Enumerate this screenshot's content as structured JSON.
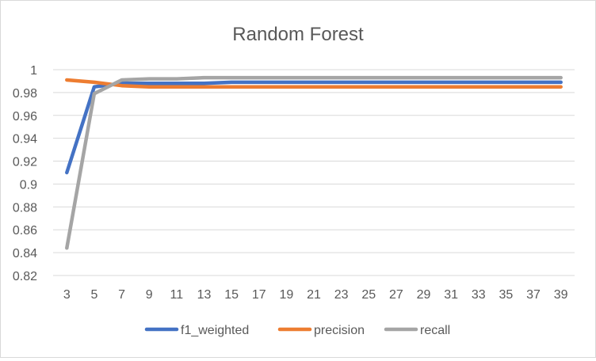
{
  "chart_data": {
    "type": "line",
    "title": "Random Forest",
    "xlabel": "",
    "ylabel": "",
    "x": [
      3,
      5,
      7,
      9,
      11,
      13,
      15,
      17,
      19,
      21,
      23,
      25,
      27,
      29,
      31,
      33,
      35,
      37,
      39
    ],
    "ylim": [
      0.82,
      1
    ],
    "yticks": [
      "0.82",
      "0.84",
      "0.86",
      "0.88",
      "0.9",
      "0.92",
      "0.94",
      "0.96",
      "0.98",
      "1"
    ],
    "grid": true,
    "legend": "bottom",
    "series": [
      {
        "name": "f1_weighted",
        "color": "#4472C4",
        "values": [
          0.91,
          0.985,
          0.988,
          0.988,
          0.988,
          0.988,
          0.989,
          0.989,
          0.989,
          0.989,
          0.989,
          0.989,
          0.989,
          0.989,
          0.989,
          0.989,
          0.989,
          0.989,
          0.989
        ]
      },
      {
        "name": "precision",
        "color": "#ED7D31",
        "values": [
          0.991,
          0.989,
          0.986,
          0.985,
          0.985,
          0.985,
          0.985,
          0.985,
          0.985,
          0.985,
          0.985,
          0.985,
          0.985,
          0.985,
          0.985,
          0.985,
          0.985,
          0.985,
          0.985
        ]
      },
      {
        "name": "recall",
        "color": "#A5A5A5",
        "values": [
          0.844,
          0.979,
          0.991,
          0.992,
          0.992,
          0.993,
          0.993,
          0.993,
          0.993,
          0.993,
          0.993,
          0.993,
          0.993,
          0.993,
          0.993,
          0.993,
          0.993,
          0.993,
          0.993
        ]
      }
    ]
  }
}
